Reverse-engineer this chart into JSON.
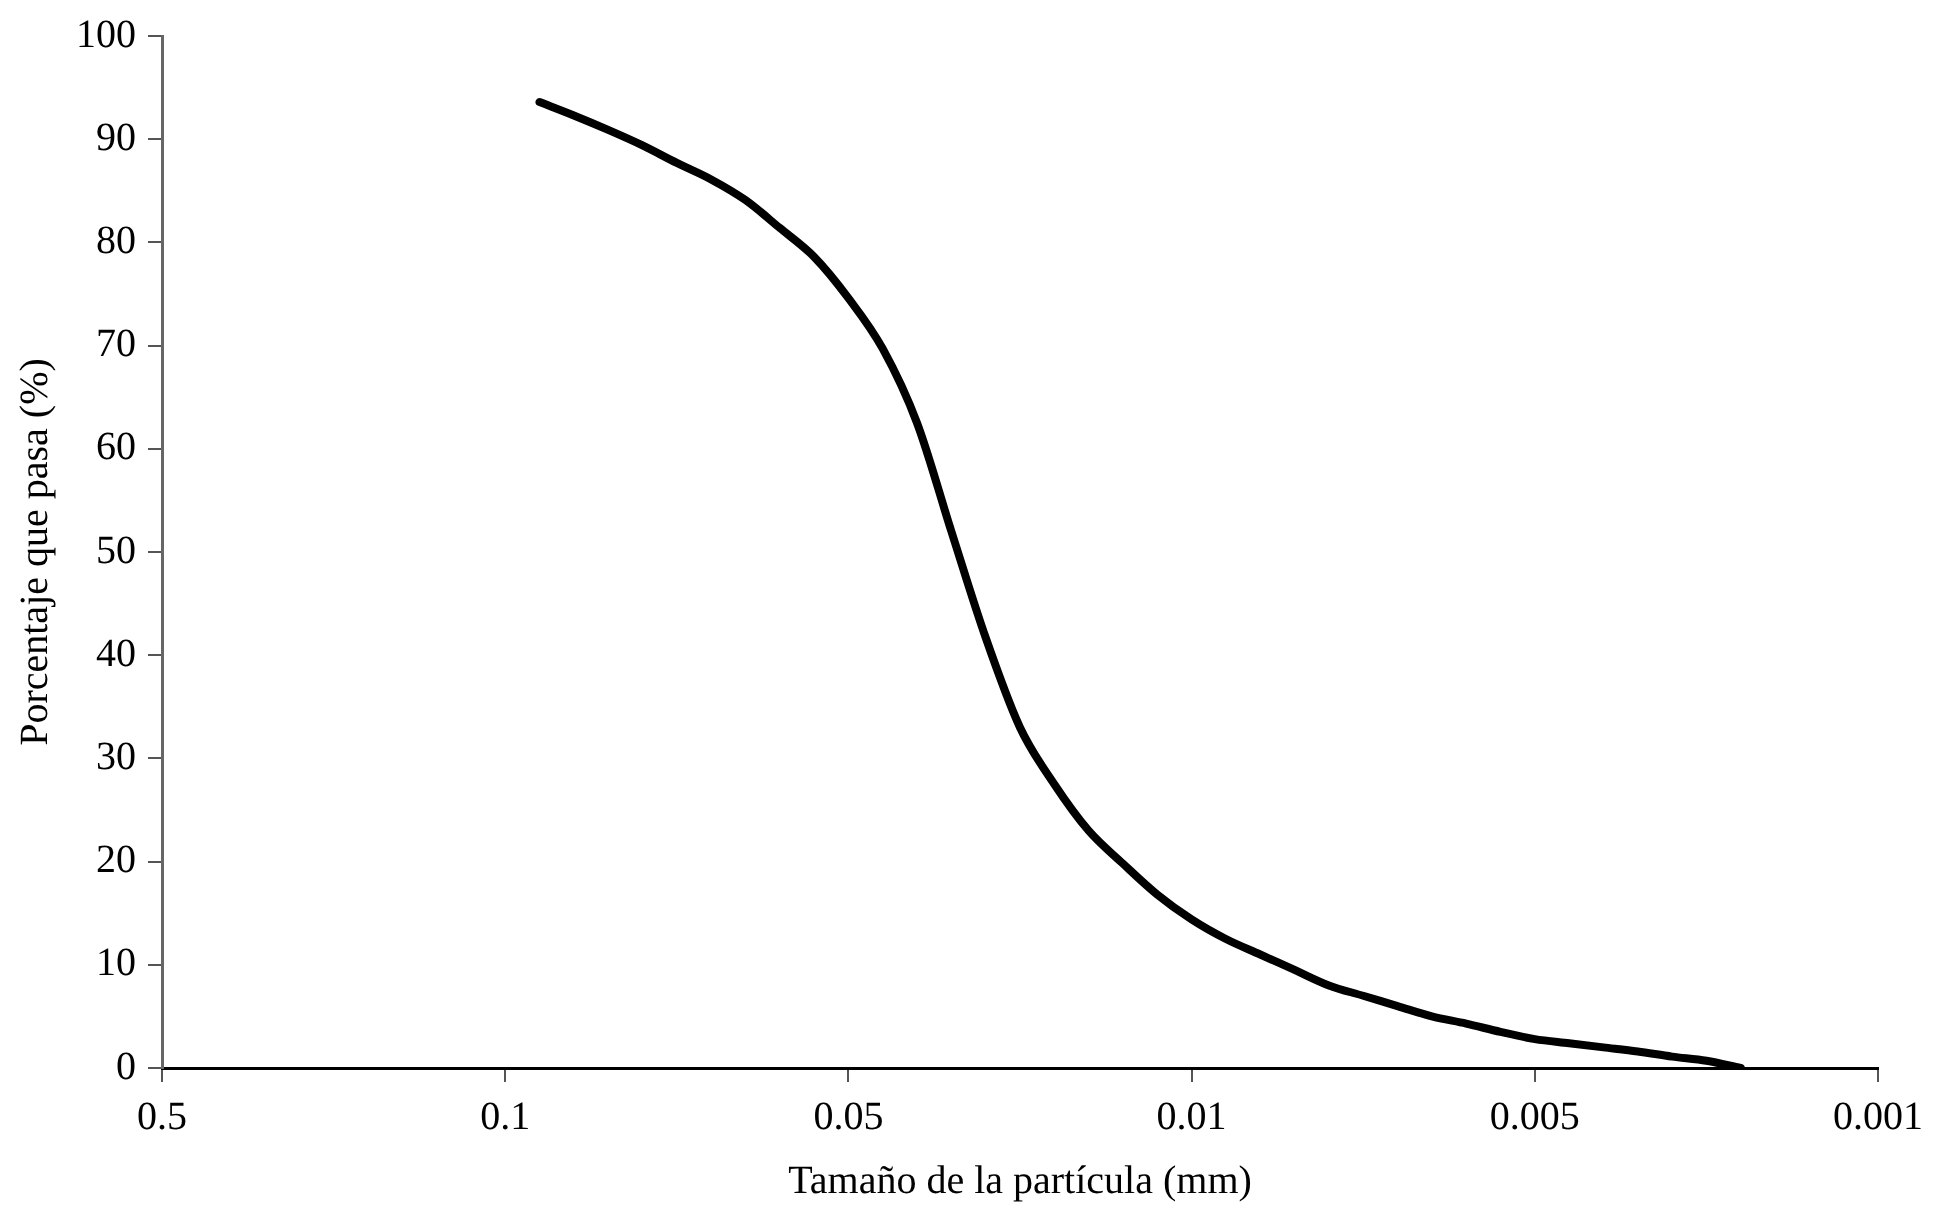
{
  "chart_data": {
    "type": "line",
    "xlabel": "Tamaño de la partícula (mm)",
    "ylabel": "Porcentaje que pasa (%)",
    "categories": [
      "0.5",
      null,
      null,
      null,
      null,
      null,
      null,
      null,
      null,
      null,
      "0.1",
      null,
      null,
      null,
      null,
      null,
      null,
      null,
      null,
      null,
      "0.05",
      null,
      null,
      null,
      null,
      null,
      null,
      null,
      null,
      null,
      "0.01",
      null,
      null,
      null,
      null,
      null,
      null,
      null,
      null,
      null,
      "0.005",
      null,
      null,
      null,
      null,
      null,
      null,
      null,
      null,
      null,
      "0.001"
    ],
    "series": [
      {
        "color": "#000000",
        "values": [
          null,
          null,
          null,
          null,
          null,
          null,
          null,
          null,
          null,
          null,
          null,
          93.6,
          92.3,
          90.9,
          89.4,
          87.7,
          86.1,
          84.1,
          81.4,
          78.6,
          74.6,
          69.7,
          62.5,
          52,
          41.7,
          33.0,
          27.5,
          23.0,
          19.8,
          16.8,
          14.4,
          12.5,
          11.0,
          9.5,
          8.0,
          7.0,
          6.0,
          5.0,
          4.3,
          3.5,
          2.8,
          2.4,
          2.0,
          1.6,
          1.1,
          0.7,
          0,
          null,
          null,
          null,
          null
        ]
      }
    ],
    "ylim": [
      0,
      100
    ],
    "yticks": [
      0,
      10,
      20,
      30,
      40,
      50,
      60,
      70,
      80,
      90,
      100
    ],
    "grid": false,
    "legend": false,
    "marker": "none",
    "line_style": "solid"
  }
}
